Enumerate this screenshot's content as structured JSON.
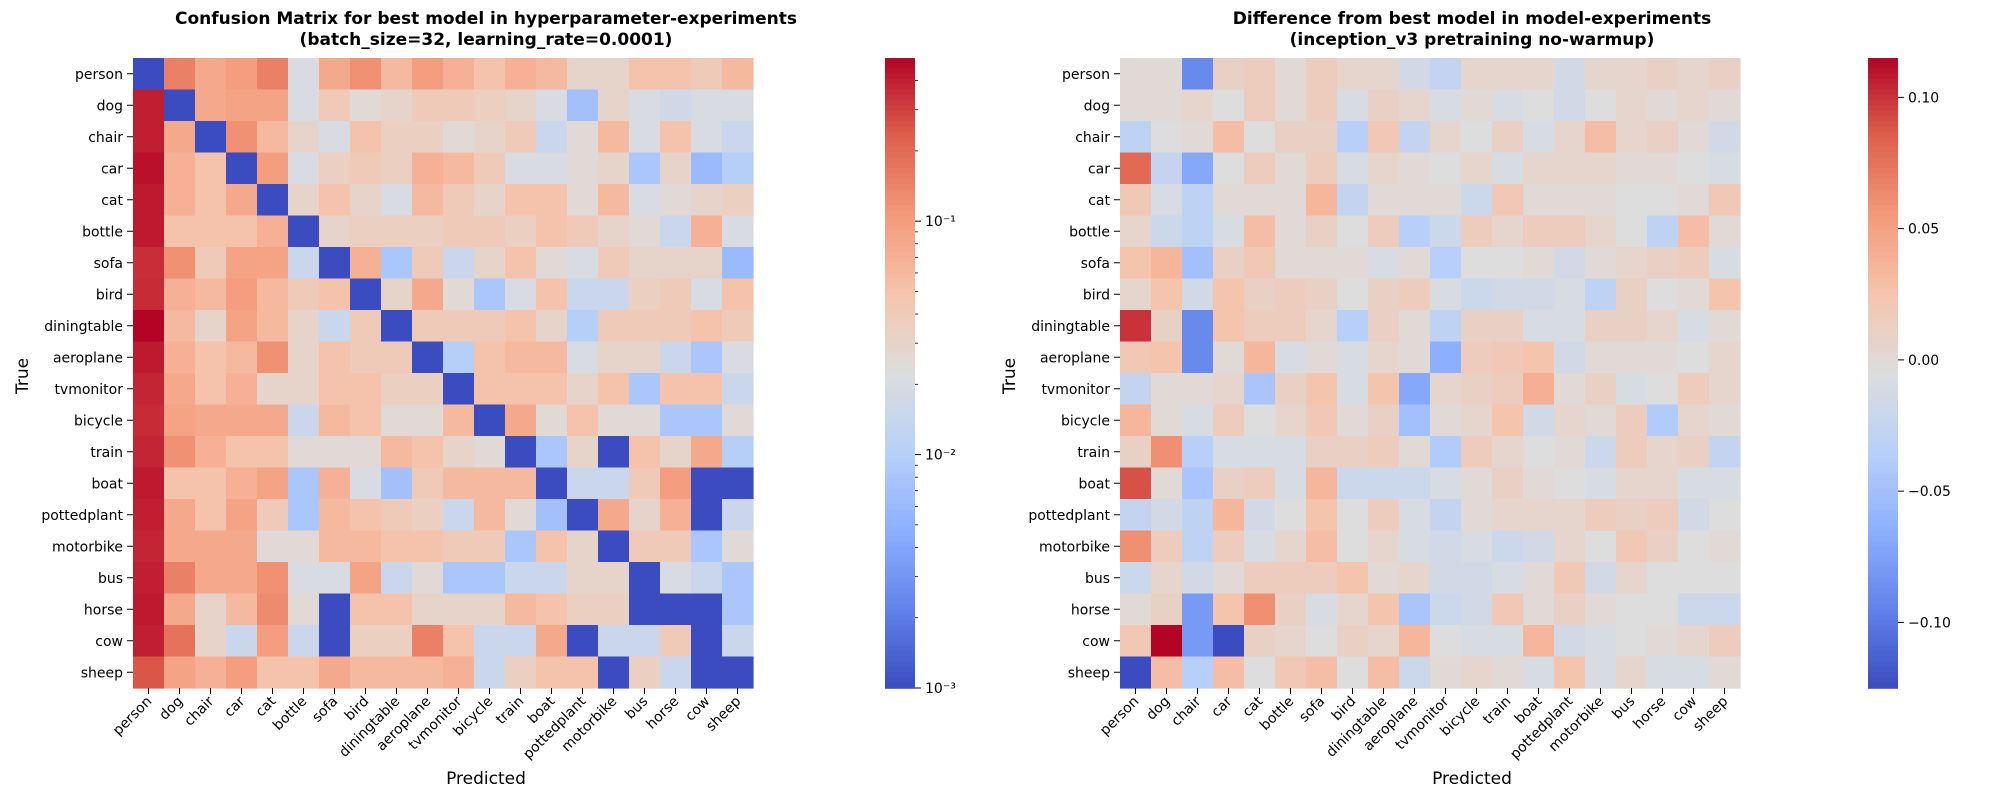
{
  "chart_data": [
    {
      "type": "heatmap",
      "title": "Confusion Matrix for best model in hyperparameter-experiments",
      "subtitle": "(batch_size=32, learning_rate=0.0001)",
      "xlabel": "Predicted",
      "ylabel": "True",
      "colormap": "coolwarm",
      "scale": "log",
      "vmin": 0.001,
      "vmax": 0.5,
      "colorbar_ticks": [
        {
          "value": 0.1,
          "label": "10⁻¹"
        },
        {
          "value": 0.01,
          "label": "10⁻²"
        },
        {
          "value": 0.001,
          "label": "10⁻³"
        }
      ],
      "x_categories": [
        "person",
        "dog",
        "chair",
        "car",
        "cat",
        "bottle",
        "sofa",
        "bird",
        "diningtable",
        "aeroplane",
        "tvmonitor",
        "bicycle",
        "train",
        "boat",
        "pottedplant",
        "motorbike",
        "bus",
        "horse",
        "cow",
        "sheep"
      ],
      "y_categories": [
        "person",
        "dog",
        "chair",
        "car",
        "cat",
        "bottle",
        "sofa",
        "bird",
        "diningtable",
        "aeroplane",
        "tvmonitor",
        "bicycle",
        "train",
        "boat",
        "pottedplant",
        "motorbike",
        "bus",
        "horse",
        "cow",
        "sheep"
      ],
      "values": [
        [
          0.001,
          0.15,
          0.08,
          0.1,
          0.15,
          0.02,
          0.08,
          0.12,
          0.06,
          0.1,
          0.07,
          0.05,
          0.07,
          0.06,
          0.03,
          0.03,
          0.05,
          0.05,
          0.04,
          0.06
        ],
        [
          0.4,
          0.001,
          0.08,
          0.09,
          0.09,
          0.02,
          0.04,
          0.025,
          0.03,
          0.04,
          0.04,
          0.035,
          0.03,
          0.02,
          0.007,
          0.03,
          0.02,
          0.017,
          0.02,
          0.02
        ],
        [
          0.4,
          0.08,
          0.001,
          0.12,
          0.06,
          0.03,
          0.02,
          0.05,
          0.035,
          0.035,
          0.025,
          0.03,
          0.04,
          0.015,
          0.025,
          0.06,
          0.02,
          0.05,
          0.02,
          0.015
        ],
        [
          0.45,
          0.07,
          0.05,
          0.001,
          0.1,
          0.02,
          0.035,
          0.04,
          0.035,
          0.07,
          0.06,
          0.04,
          0.02,
          0.02,
          0.025,
          0.03,
          0.008,
          0.03,
          0.006,
          0.01
        ],
        [
          0.42,
          0.07,
          0.05,
          0.08,
          0.001,
          0.03,
          0.05,
          0.03,
          0.02,
          0.06,
          0.04,
          0.03,
          0.05,
          0.05,
          0.025,
          0.06,
          0.02,
          0.025,
          0.03,
          0.035
        ],
        [
          0.42,
          0.05,
          0.05,
          0.05,
          0.07,
          0.001,
          0.03,
          0.035,
          0.035,
          0.035,
          0.04,
          0.04,
          0.035,
          0.05,
          0.04,
          0.03,
          0.025,
          0.015,
          0.07,
          0.02
        ],
        [
          0.35,
          0.12,
          0.04,
          0.09,
          0.09,
          0.015,
          0.001,
          0.07,
          0.008,
          0.04,
          0.015,
          0.03,
          0.05,
          0.025,
          0.02,
          0.04,
          0.03,
          0.03,
          0.03,
          0.006
        ],
        [
          0.36,
          0.07,
          0.06,
          0.1,
          0.06,
          0.04,
          0.05,
          0.001,
          0.03,
          0.08,
          0.025,
          0.008,
          0.02,
          0.05,
          0.015,
          0.015,
          0.035,
          0.04,
          0.02,
          0.05
        ],
        [
          0.5,
          0.06,
          0.03,
          0.09,
          0.06,
          0.03,
          0.015,
          0.04,
          0.001,
          0.04,
          0.04,
          0.04,
          0.05,
          0.03,
          0.01,
          0.04,
          0.04,
          0.04,
          0.05,
          0.04
        ],
        [
          0.42,
          0.07,
          0.05,
          0.06,
          0.12,
          0.03,
          0.05,
          0.04,
          0.04,
          0.001,
          0.01,
          0.05,
          0.06,
          0.06,
          0.02,
          0.03,
          0.03,
          0.015,
          0.008,
          0.02
        ],
        [
          0.38,
          0.08,
          0.05,
          0.07,
          0.03,
          0.03,
          0.05,
          0.05,
          0.035,
          0.035,
          0.001,
          0.05,
          0.05,
          0.05,
          0.03,
          0.05,
          0.008,
          0.05,
          0.05,
          0.015
        ],
        [
          0.36,
          0.09,
          0.08,
          0.08,
          0.08,
          0.015,
          0.06,
          0.05,
          0.025,
          0.025,
          0.06,
          0.001,
          0.08,
          0.025,
          0.05,
          0.025,
          0.025,
          0.008,
          0.008,
          0.025
        ],
        [
          0.38,
          0.12,
          0.07,
          0.05,
          0.05,
          0.025,
          0.025,
          0.025,
          0.06,
          0.05,
          0.03,
          0.025,
          0.001,
          0.008,
          0.03,
          0.001,
          0.05,
          0.03,
          0.08,
          0.01
        ],
        [
          0.42,
          0.05,
          0.05,
          0.07,
          0.09,
          0.008,
          0.07,
          0.02,
          0.007,
          0.04,
          0.06,
          0.06,
          0.06,
          0.001,
          0.015,
          0.015,
          0.04,
          0.1,
          0.001,
          0.001
        ],
        [
          0.4,
          0.08,
          0.05,
          0.09,
          0.04,
          0.008,
          0.06,
          0.05,
          0.04,
          0.035,
          0.015,
          0.06,
          0.025,
          0.007,
          0.001,
          0.08,
          0.03,
          0.07,
          0.001,
          0.015
        ],
        [
          0.38,
          0.08,
          0.08,
          0.08,
          0.025,
          0.025,
          0.06,
          0.06,
          0.05,
          0.05,
          0.04,
          0.04,
          0.008,
          0.05,
          0.03,
          0.001,
          0.04,
          0.04,
          0.008,
          0.025
        ],
        [
          0.4,
          0.15,
          0.08,
          0.08,
          0.12,
          0.02,
          0.02,
          0.09,
          0.015,
          0.025,
          0.008,
          0.008,
          0.015,
          0.015,
          0.03,
          0.03,
          0.001,
          0.02,
          0.015,
          0.008
        ],
        [
          0.42,
          0.08,
          0.03,
          0.06,
          0.13,
          0.025,
          0.001,
          0.05,
          0.05,
          0.03,
          0.03,
          0.03,
          0.06,
          0.05,
          0.035,
          0.035,
          0.001,
          0.001,
          0.001,
          0.008
        ],
        [
          0.4,
          0.18,
          0.03,
          0.015,
          0.1,
          0.015,
          0.001,
          0.035,
          0.035,
          0.15,
          0.05,
          0.015,
          0.015,
          0.08,
          0.001,
          0.015,
          0.015,
          0.04,
          0.001,
          0.015
        ],
        [
          0.25,
          0.09,
          0.07,
          0.1,
          0.05,
          0.05,
          0.08,
          0.06,
          0.06,
          0.06,
          0.07,
          0.015,
          0.035,
          0.05,
          0.05,
          0.001,
          0.035,
          0.015,
          0.001,
          0.001
        ]
      ]
    },
    {
      "type": "heatmap",
      "title": "Difference from best model in model-experiments",
      "subtitle": "(inception_v3 pretraining no-warmup)",
      "xlabel": "Predicted",
      "ylabel": "True",
      "colormap": "coolwarm",
      "scale": "linear",
      "vmin": -0.125,
      "vmax": 0.115,
      "colorbar_ticks": [
        {
          "value": 0.1,
          "label": "0.10"
        },
        {
          "value": 0.05,
          "label": "0.05"
        },
        {
          "value": 0.0,
          "label": "0.00"
        },
        {
          "value": -0.05,
          "label": "−0.05"
        },
        {
          "value": -0.1,
          "label": "−0.10"
        }
      ],
      "x_categories": [
        "person",
        "dog",
        "chair",
        "car",
        "cat",
        "bottle",
        "sofa",
        "bird",
        "diningtable",
        "aeroplane",
        "tvmonitor",
        "bicycle",
        "train",
        "boat",
        "pottedplant",
        "motorbike",
        "bus",
        "horse",
        "cow",
        "sheep"
      ],
      "y_categories": [
        "person",
        "dog",
        "chair",
        "car",
        "cat",
        "bottle",
        "sofa",
        "bird",
        "diningtable",
        "aeroplane",
        "tvmonitor",
        "bicycle",
        "train",
        "boat",
        "pottedplant",
        "motorbike",
        "bus",
        "horse",
        "cow",
        "sheep"
      ],
      "values": [
        [
          0.0,
          0.0,
          -0.09,
          0.01,
          0.015,
          0.0,
          0.015,
          0.005,
          0.005,
          -0.015,
          -0.025,
          0.005,
          0.005,
          0.005,
          -0.015,
          0.005,
          0.005,
          0.01,
          0.005,
          0.01
        ],
        [
          0.0,
          0.0,
          0.005,
          -0.005,
          0.015,
          0.0,
          0.015,
          -0.01,
          0.01,
          0.005,
          -0.01,
          0.0,
          -0.01,
          -0.005,
          -0.015,
          -0.005,
          0.005,
          0.0,
          0.005,
          0.0
        ],
        [
          -0.03,
          -0.005,
          0.0,
          0.03,
          -0.005,
          0.01,
          0.01,
          -0.035,
          0.02,
          -0.025,
          0.005,
          -0.005,
          0.01,
          -0.01,
          0.005,
          0.03,
          0.005,
          0.01,
          0.0,
          -0.015
        ],
        [
          0.08,
          -0.025,
          -0.07,
          -0.005,
          0.015,
          0.0,
          0.015,
          -0.01,
          0.005,
          0.0,
          -0.005,
          0.005,
          -0.01,
          0.005,
          0.005,
          0.005,
          0.0,
          0.0,
          -0.005,
          -0.01
        ],
        [
          0.02,
          -0.01,
          -0.03,
          0.0,
          0.0,
          0.0,
          0.035,
          -0.025,
          0.0,
          0.0,
          0.0,
          -0.02,
          0.02,
          0.0,
          0.0,
          0.0,
          -0.005,
          -0.005,
          0.0,
          0.02
        ],
        [
          0.005,
          -0.02,
          -0.03,
          -0.01,
          0.03,
          0.0,
          0.01,
          -0.005,
          0.015,
          -0.035,
          -0.02,
          0.015,
          0.005,
          0.015,
          0.015,
          0.005,
          -0.005,
          -0.03,
          0.03,
          0.0
        ],
        [
          0.025,
          0.035,
          -0.05,
          0.01,
          0.02,
          0.0,
          0.0,
          0.0,
          -0.01,
          0.0,
          -0.035,
          -0.005,
          -0.005,
          0.0,
          -0.015,
          0.0,
          0.005,
          0.01,
          0.015,
          -0.01
        ],
        [
          0.005,
          0.025,
          -0.015,
          0.025,
          0.01,
          0.015,
          0.01,
          -0.005,
          0.01,
          0.015,
          -0.01,
          -0.02,
          -0.015,
          -0.015,
          -0.01,
          -0.03,
          0.01,
          -0.005,
          0.0,
          0.025
        ],
        [
          0.1,
          0.01,
          -0.09,
          0.025,
          0.015,
          0.015,
          0.005,
          -0.035,
          0.01,
          0.0,
          -0.03,
          0.01,
          0.01,
          -0.01,
          -0.01,
          0.01,
          0.01,
          0.005,
          -0.01,
          0.0
        ],
        [
          0.02,
          0.025,
          -0.09,
          0.0,
          0.035,
          -0.01,
          0.0,
          -0.01,
          0.005,
          0.0,
          -0.065,
          0.015,
          0.02,
          0.025,
          -0.015,
          0.0,
          0.0,
          0.0,
          -0.005,
          0.005
        ],
        [
          -0.025,
          0.0,
          0.0,
          0.005,
          -0.045,
          0.01,
          0.025,
          -0.01,
          0.025,
          -0.07,
          0.005,
          0.01,
          0.015,
          0.04,
          0.0,
          0.01,
          -0.01,
          -0.005,
          0.015,
          0.005
        ],
        [
          0.035,
          0.0,
          -0.01,
          0.015,
          -0.005,
          0.005,
          0.02,
          0.0,
          0.01,
          -0.05,
          0.0,
          0.005,
          0.025,
          -0.015,
          0.005,
          0.0,
          0.015,
          -0.04,
          0.005,
          0.0
        ],
        [
          0.01,
          0.06,
          -0.035,
          -0.01,
          -0.01,
          -0.01,
          0.01,
          0.01,
          0.015,
          0.0,
          -0.04,
          0.015,
          0.005,
          -0.005,
          0.0,
          -0.02,
          0.015,
          0.005,
          0.01,
          -0.025
        ],
        [
          0.09,
          0.0,
          -0.045,
          0.01,
          0.015,
          -0.01,
          0.035,
          -0.02,
          -0.02,
          -0.02,
          -0.01,
          0.0,
          0.01,
          0.0,
          -0.005,
          -0.01,
          0.005,
          0.005,
          -0.01,
          -0.01
        ],
        [
          -0.025,
          -0.015,
          -0.03,
          0.035,
          -0.015,
          -0.005,
          0.025,
          -0.005,
          0.015,
          -0.01,
          -0.025,
          0.0,
          0.005,
          0.005,
          0.005,
          0.015,
          0.01,
          0.015,
          -0.015,
          -0.005
        ],
        [
          0.06,
          0.015,
          -0.03,
          0.015,
          -0.01,
          0.005,
          0.03,
          -0.005,
          0.005,
          -0.01,
          -0.015,
          -0.01,
          -0.02,
          -0.015,
          0.005,
          -0.005,
          0.02,
          0.01,
          -0.005,
          0.0
        ],
        [
          -0.02,
          0.005,
          -0.015,
          0.0,
          0.015,
          0.015,
          0.015,
          0.025,
          0.0,
          0.005,
          -0.015,
          -0.015,
          -0.01,
          0.0,
          0.02,
          -0.015,
          0.005,
          -0.005,
          -0.005,
          -0.005
        ],
        [
          0.0,
          0.01,
          -0.08,
          0.025,
          0.06,
          0.01,
          -0.01,
          0.005,
          0.025,
          -0.045,
          -0.02,
          -0.015,
          0.02,
          0.0,
          0.01,
          0.0,
          -0.005,
          -0.005,
          -0.02,
          -0.02
        ],
        [
          0.02,
          0.115,
          -0.08,
          -0.13,
          0.01,
          0.005,
          -0.005,
          0.01,
          0.005,
          0.035,
          -0.005,
          -0.01,
          -0.01,
          0.035,
          -0.015,
          -0.01,
          -0.005,
          0.0,
          0.005,
          0.015
        ],
        [
          -0.125,
          0.03,
          -0.035,
          0.03,
          -0.005,
          0.02,
          0.03,
          -0.005,
          0.03,
          -0.02,
          0.0,
          0.005,
          0.0,
          -0.01,
          0.025,
          -0.01,
          0.005,
          -0.01,
          -0.01,
          0.0
        ]
      ]
    }
  ]
}
